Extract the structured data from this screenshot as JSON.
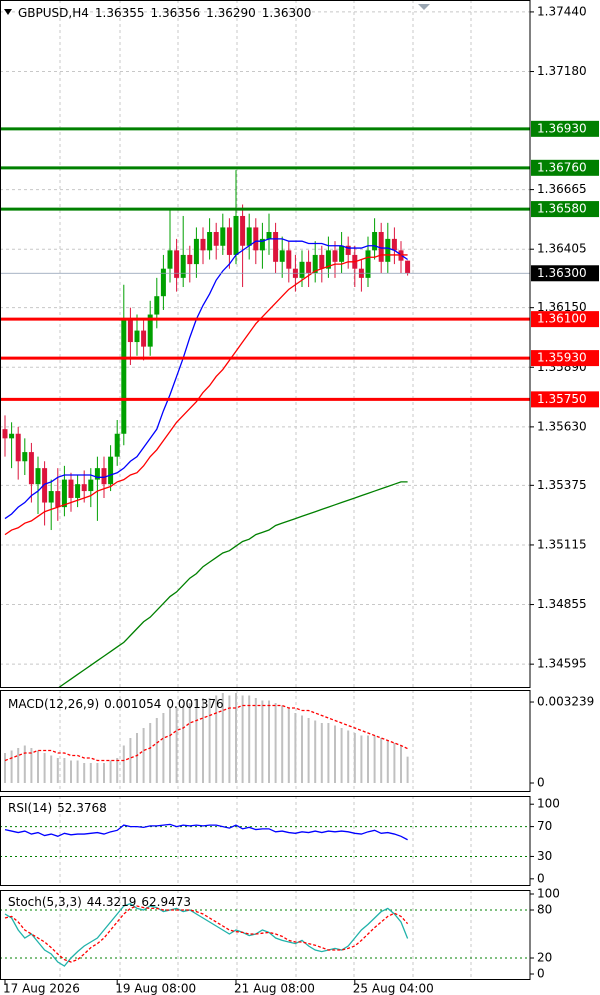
{
  "chart_data": [
    {
      "type": "candlestick",
      "title": "GBPUSD,H4",
      "readout": [
        1.36355,
        1.36356,
        {
          "value": 1.3629,
          "label": "1.36290"
        },
        {
          "value": 1.363,
          "label": "1.36300"
        }
      ],
      "categories": [
        "17 Aug 2026",
        null,
        null,
        null,
        null,
        null,
        null,
        null,
        null,
        null,
        null,
        null,
        null,
        null,
        null,
        null,
        null,
        "19 Aug 08:00",
        null,
        null,
        null,
        null,
        null,
        null,
        null,
        null,
        null,
        null,
        null,
        null,
        null,
        null,
        null,
        null,
        null,
        "21 Aug 08:00",
        null,
        null,
        null,
        null,
        null,
        null,
        null,
        null,
        null,
        null,
        null,
        null,
        null,
        null,
        null,
        null,
        null,
        "25 Aug 04:00",
        null,
        null,
        null,
        null,
        null,
        null,
        null,
        null
      ],
      "open": [
        1.3562,
        1.3558,
        1.356,
        1.3548,
        1.3552,
        1.3538,
        1.3545,
        1.353,
        1.3535,
        1.3528,
        1.354,
        1.3532,
        1.3538,
        1.3535,
        1.354,
        1.3545,
        1.3538,
        1.355,
        1.356,
        1.361,
        1.36,
        1.3605,
        1.3598,
        1.3612,
        1.362,
        1.3632,
        1.364,
        1.3628,
        1.3638,
        1.3634,
        1.3645,
        1.364,
        1.3648,
        1.3642,
        1.365,
        1.3638,
        1.3655,
        1.3642,
        1.365,
        1.364,
        1.3645,
        1.3648,
        1.3635,
        1.364,
        1.3632,
        1.3628,
        1.3635,
        1.363,
        1.3638,
        1.3632,
        1.364,
        1.3635,
        1.3642,
        1.3638,
        1.3632,
        1.3628,
        1.364,
        1.3648,
        1.3635,
        1.3645,
        1.364,
        1.36355
      ],
      "high": [
        1.3568,
        1.3565,
        1.3563,
        1.3558,
        1.3556,
        1.355,
        1.3548,
        1.354,
        1.3545,
        1.3546,
        1.3543,
        1.3542,
        1.3544,
        1.3545,
        1.355,
        1.355,
        1.3555,
        1.3566,
        1.3625,
        1.3615,
        1.3612,
        1.361,
        1.3618,
        1.3628,
        1.3638,
        1.3658,
        1.3645,
        1.3655,
        1.3642,
        1.365,
        1.365,
        1.3654,
        1.3652,
        1.3656,
        1.3654,
        1.3675,
        1.366,
        1.3656,
        1.3654,
        1.3652,
        1.3656,
        1.3652,
        1.3646,
        1.3644,
        1.3638,
        1.364,
        1.364,
        1.3644,
        1.3642,
        1.3646,
        1.3644,
        1.3648,
        1.3646,
        1.3642,
        1.3636,
        1.3646,
        1.3654,
        1.3652,
        1.3652,
        1.365,
        1.3644,
        1.36356
      ],
      "low": [
        1.355,
        1.3545,
        1.354,
        1.3542,
        1.353,
        1.3525,
        1.352,
        1.3518,
        1.3522,
        1.3524,
        1.3526,
        1.3528,
        1.353,
        1.3528,
        1.3522,
        1.3532,
        1.3535,
        1.3546,
        1.3555,
        1.359,
        1.3594,
        1.3592,
        1.3594,
        1.3606,
        1.3614,
        1.3626,
        1.3622,
        1.3624,
        1.3626,
        1.3628,
        1.3634,
        1.3636,
        1.3636,
        1.3638,
        1.3632,
        1.3634,
        1.3624,
        1.3636,
        1.3634,
        1.3632,
        1.3638,
        1.363,
        1.3628,
        1.3626,
        1.3622,
        1.3624,
        1.3624,
        1.3626,
        1.3626,
        1.3628,
        1.3628,
        1.363,
        1.3632,
        1.3624,
        1.3622,
        1.3624,
        1.3636,
        1.363,
        1.363,
        1.3634,
        1.363,
        1.3629
      ],
      "close": [
        1.3558,
        1.356,
        1.3548,
        1.3552,
        1.3538,
        1.3545,
        1.353,
        1.3535,
        1.3528,
        1.354,
        1.3532,
        1.3538,
        1.3535,
        1.354,
        1.3545,
        1.3538,
        1.355,
        1.356,
        1.361,
        1.36,
        1.3605,
        1.3598,
        1.3612,
        1.362,
        1.3632,
        1.364,
        1.3628,
        1.3638,
        1.3634,
        1.3645,
        1.364,
        1.3648,
        1.3642,
        1.365,
        1.3638,
        1.3655,
        1.3642,
        1.365,
        1.364,
        1.3645,
        1.3648,
        1.3635,
        1.364,
        1.3632,
        1.3628,
        1.3635,
        1.363,
        1.3638,
        1.3632,
        1.364,
        1.3635,
        1.3642,
        1.3638,
        1.3632,
        1.3628,
        1.364,
        1.3648,
        1.3635,
        1.3645,
        1.364,
        1.36355,
        1.363
      ],
      "up_color": "#00a000",
      "down_color": "#dc143c",
      "moving_averages": [
        {
          "color": "#0000ff",
          "values": [
            1.3523,
            1.3525,
            1.3528,
            1.353,
            1.3533,
            1.3535,
            1.3538,
            1.3539,
            1.3541,
            1.3542,
            1.3542,
            1.3542,
            1.3542,
            1.3542,
            1.3541,
            1.3541,
            1.3542,
            1.3543,
            1.3545,
            1.3548,
            1.355,
            1.3554,
            1.3558,
            1.3562,
            1.357,
            1.3577,
            1.3585,
            1.3593,
            1.3602,
            1.361,
            1.3616,
            1.3621,
            1.3627,
            1.3631,
            1.3634,
            1.3638,
            1.364,
            1.3642,
            1.3644,
            1.3644,
            1.3645,
            1.3645,
            1.3645,
            1.3644,
            1.3644,
            1.3644,
            1.3643,
            1.3643,
            1.3643,
            1.3642,
            1.3642,
            1.3642,
            1.3641,
            1.3641,
            1.3641,
            1.3642,
            1.3642,
            1.3641,
            1.3641,
            1.364,
            1.3638,
            1.3636
          ]
        },
        {
          "color": "#ff0000",
          "values": [
            1.3516,
            1.3518,
            1.3519,
            1.3521,
            1.3522,
            1.3524,
            1.3526,
            1.3527,
            1.3528,
            1.3529,
            1.353,
            1.3531,
            1.3532,
            1.3533,
            1.3535,
            1.3536,
            1.3537,
            1.3539,
            1.354,
            1.3542,
            1.3543,
            1.3546,
            1.355,
            1.3553,
            1.3557,
            1.3561,
            1.3565,
            1.3568,
            1.3571,
            1.3574,
            1.3578,
            1.3581,
            1.3585,
            1.3588,
            1.3592,
            1.3596,
            1.36,
            1.3604,
            1.3608,
            1.3611,
            1.3614,
            1.3617,
            1.362,
            1.3623,
            1.3625,
            1.3627,
            1.3629,
            1.3631,
            1.3632,
            1.3633,
            1.3634,
            1.3634,
            1.3635,
            1.3635,
            1.3636,
            1.3637,
            1.3637,
            1.3638,
            1.3638,
            1.3638,
            1.3638,
            1.3638
          ]
        },
        {
          "color": "#008000",
          "values": [
            null,
            null,
            null,
            null,
            null,
            null,
            null,
            null,
            1.3449,
            1.3451,
            1.3453,
            1.3455,
            1.3457,
            1.3459,
            1.3461,
            1.3463,
            1.3465,
            1.3467,
            1.3469,
            1.3472,
            1.3475,
            1.3478,
            1.348,
            1.3483,
            1.3486,
            1.3489,
            1.3491,
            1.3494,
            1.3497,
            1.3499,
            1.3502,
            1.3504,
            1.3506,
            1.3508,
            1.3509,
            1.3511,
            1.3513,
            1.3514,
            1.3516,
            1.3517,
            1.3518,
            1.352,
            1.3521,
            1.3522,
            1.3523,
            1.3524,
            1.3525,
            1.3526,
            1.3527,
            1.3528,
            1.3529,
            1.353,
            1.3531,
            1.3532,
            1.3533,
            1.3534,
            1.3535,
            1.3536,
            1.3537,
            1.3538,
            1.3539,
            1.3539
          ]
        }
      ],
      "levels": [
        {
          "value": 1.3693,
          "label": "1.36930",
          "color": "#008000"
        },
        {
          "value": 1.3676,
          "label": "1.36760",
          "color": "#008000"
        },
        {
          "value": 1.3658,
          "label": "1.36580",
          "color": "#008000"
        },
        {
          "value": 1.361,
          "label": "1.36100",
          "color": "#ff0000"
        },
        {
          "value": 1.3593,
          "label": "1.35930",
          "color": "#ff0000"
        },
        {
          "value": 1.3575,
          "label": "1.35750",
          "color": "#ff0000"
        }
      ],
      "last_price": {
        "value": 1.363,
        "label": "1.36300"
      },
      "ylim": [
        1.34491,
        1.37492
      ],
      "yticks": [
        {
          "value": 1.3744,
          "label": "1.37440"
        },
        {
          "value": 1.3718,
          "label": "1.37180"
        },
        1.36665,
        1.36405,
        {
          "value": 1.3615,
          "label": "1.36150"
        },
        {
          "value": 1.3589,
          "label": "1.35890"
        },
        {
          "value": 1.3563,
          "label": "1.35630"
        },
        1.35375,
        1.35115,
        1.34855,
        1.34595
      ],
      "grid": true
    },
    {
      "type": "macd",
      "title": "MACD(12,26,9)",
      "readout": [
        0.001054,
        0.001376
      ],
      "series": [
        {
          "color": "#c0c0c0",
          "values": [
            0.0012,
            0.0013,
            0.0014,
            0.0015,
            0.0014,
            0.0013,
            0.0012,
            0.0011,
            0.001,
            0.001,
            0.0009,
            0.0009,
            0.0008,
            0.0008,
            0.0008,
            0.0008,
            0.0009,
            0.001,
            0.0015,
            0.0018,
            0.002,
            0.0022,
            0.0024,
            0.0026,
            0.0028,
            0.003,
            0.003,
            0.0031,
            0.0032,
            0.0033,
            0.0034,
            0.0034,
            0.0035,
            0.0036,
            0.0035,
            0.0036,
            0.0035,
            0.0035,
            0.0034,
            0.0033,
            0.0033,
            0.0032,
            0.0031,
            0.003,
            0.0028,
            0.0027,
            0.0026,
            0.0025,
            0.0024,
            0.0024,
            0.0023,
            0.0022,
            0.0021,
            0.002,
            0.0019,
            0.0019,
            0.0019,
            0.0018,
            0.0017,
            0.0016,
            0.0015,
            0.001054
          ]
        },
        {
          "color": "#ff0000",
          "values": [
            0.0009,
            0.001,
            0.0011,
            0.0012,
            0.0012,
            0.0013,
            0.0013,
            0.0013,
            0.0012,
            0.0012,
            0.0011,
            0.0011,
            0.001,
            0.001,
            0.0009,
            0.0009,
            0.0009,
            0.0009,
            0.0009,
            0.001,
            0.0011,
            0.0013,
            0.0014,
            0.0016,
            0.0018,
            0.0019,
            0.0021,
            0.0022,
            0.0024,
            0.0025,
            0.0026,
            0.0027,
            0.0028,
            0.0029,
            0.003,
            0.003,
            0.0031,
            0.0031,
            0.0031,
            0.0031,
            0.0031,
            0.0031,
            0.0031,
            0.003,
            0.003,
            0.0029,
            0.0029,
            0.0028,
            0.0027,
            0.0026,
            0.0025,
            0.0024,
            0.0023,
            0.0022,
            0.0021,
            0.002,
            0.0019,
            0.0018,
            0.0017,
            0.0016,
            0.0015,
            0.001376
          ]
        }
      ],
      "ylim": [
        -0.00036,
        0.00372
      ],
      "yticks": [
        0.003239,
        0
      ]
    },
    {
      "type": "line",
      "title": "RSI(14)",
      "readout": [
        52.3768
      ],
      "series": [
        {
          "color": "#0000ff",
          "values": [
            66,
            64,
            62,
            64,
            60,
            62,
            58,
            60,
            57,
            61,
            59,
            60,
            60,
            61,
            62,
            60,
            63,
            65,
            72,
            70,
            70,
            69,
            71,
            71,
            72,
            73,
            70,
            72,
            71,
            72,
            71,
            72,
            72,
            70,
            68,
            72,
            67,
            69,
            66,
            67,
            67,
            63,
            64,
            62,
            61,
            63,
            62,
            64,
            62,
            64,
            63,
            64,
            63,
            61,
            60,
            63,
            65,
            61,
            62,
            60,
            57,
            52.3768
          ]
        }
      ],
      "levels": [
        70,
        30
      ],
      "level_color": "#008000",
      "ylim": [
        -9.6,
        111
      ],
      "yticks": [
        100,
        70,
        30,
        0
      ]
    },
    {
      "type": "line",
      "title": "Stoch(5,3,3)",
      "readout": [
        44.3219,
        62.9473
      ],
      "series": [
        {
          "color": "#20b2aa",
          "values": [
            75,
            70,
            55,
            45,
            50,
            40,
            30,
            25,
            15,
            10,
            20,
            28,
            35,
            40,
            45,
            55,
            65,
            75,
            85,
            88,
            82,
            80,
            85,
            83,
            78,
            80,
            82,
            78,
            80,
            75,
            70,
            65,
            60,
            55,
            50,
            55,
            52,
            48,
            50,
            55,
            52,
            45,
            42,
            40,
            38,
            42,
            35,
            30,
            28,
            30,
            32,
            30,
            35,
            45,
            55,
            62,
            70,
            78,
            82,
            75,
            65,
            44.3219
          ]
        },
        {
          "color": "#ff0000",
          "dashed": true,
          "values": [
            70,
            72,
            65,
            55,
            50,
            45,
            40,
            33,
            25,
            18,
            15,
            18,
            25,
            33,
            38,
            45,
            55,
            65,
            75,
            82,
            85,
            83,
            82,
            82,
            80,
            80,
            80,
            80,
            80,
            78,
            75,
            70,
            65,
            60,
            55,
            53,
            52,
            50,
            50,
            51,
            52,
            50,
            47,
            42,
            40,
            40,
            38,
            36,
            33,
            30,
            30,
            30,
            32,
            35,
            42,
            50,
            58,
            65,
            72,
            76,
            72,
            62.9473
          ]
        }
      ],
      "levels": [
        80,
        20
      ],
      "level_color": "#008000",
      "ylim": [
        -7.5,
        105
      ],
      "yticks": [
        100,
        80,
        20,
        0
      ]
    }
  ]
}
